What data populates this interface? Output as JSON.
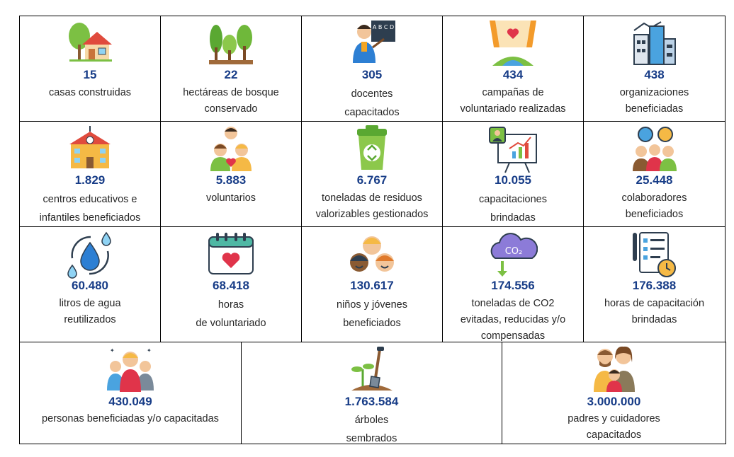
{
  "cells": [
    {
      "value": "15",
      "line1": "casas construidas",
      "line2": "",
      "icon": "house-icon"
    },
    {
      "value": "22",
      "line1": "hectáreas de bosque",
      "line2": "conservado",
      "icon": "forest-icon"
    },
    {
      "value": "305",
      "line1": "docentes",
      "line2": "capacitados",
      "icon": "teacher-icon"
    },
    {
      "value": "434",
      "line1": "campañas de",
      "line2": "voluntariado realizadas",
      "icon": "campaign-banner-icon"
    },
    {
      "value": "438",
      "line1": "organizaciones",
      "line2": "beneficiadas",
      "icon": "city-buildings-icon"
    },
    {
      "value": "1.829",
      "line1": "centros educativos e",
      "line2": "infantiles beneficiados",
      "icon": "school-icon"
    },
    {
      "value": "5.883",
      "line1": "voluntarios",
      "line2": "",
      "icon": "volunteers-icon"
    },
    {
      "value": "6.767",
      "line1": "toneladas de residuos",
      "line2": "valorizables gestionados",
      "icon": "recycle-bin-icon"
    },
    {
      "value": "10.055",
      "line1": "capacitaciones",
      "line2": "brindadas",
      "icon": "presentation-board-icon"
    },
    {
      "value": "25.448",
      "line1": "colaboradores",
      "line2": "beneficiados",
      "icon": "team-gears-icon"
    },
    {
      "value": "60.480",
      "line1": "litros de agua",
      "line2": "reutilizados",
      "icon": "water-drops-icon"
    },
    {
      "value": "68.418",
      "line1": "horas",
      "line2": "de voluntariado",
      "icon": "calendar-heart-icon"
    },
    {
      "value": "130.617",
      "line1": "niños y jóvenes",
      "line2": "beneficiados",
      "icon": "children-faces-icon"
    },
    {
      "value": "174.556",
      "line1": "toneladas de CO2",
      "line2": "evitadas, reducidas y/o",
      "line3": "compensadas",
      "icon": "co2-cloud-icon"
    },
    {
      "value": "176.388",
      "line1": "horas de capacitación",
      "line2": "brindadas",
      "icon": "checklist-clock-icon"
    },
    {
      "value": "430.049",
      "line1": "personas beneficiadas y/o capacitadas",
      "line2": "",
      "icon": "people-group-icon"
    },
    {
      "value": "1.763.584",
      "line1": "árboles",
      "line2": "sembrados",
      "icon": "shovel-sprout-icon"
    },
    {
      "value": "3.000.000",
      "line1": "padres y cuidadores",
      "line2": "capacitados",
      "icon": "family-icon"
    }
  ],
  "icon_text": {
    "co2": "CO₂",
    "teacher_board": "A B C D"
  },
  "colors": {
    "value": "#173c87",
    "text": "#262626",
    "border": "#000000"
  }
}
